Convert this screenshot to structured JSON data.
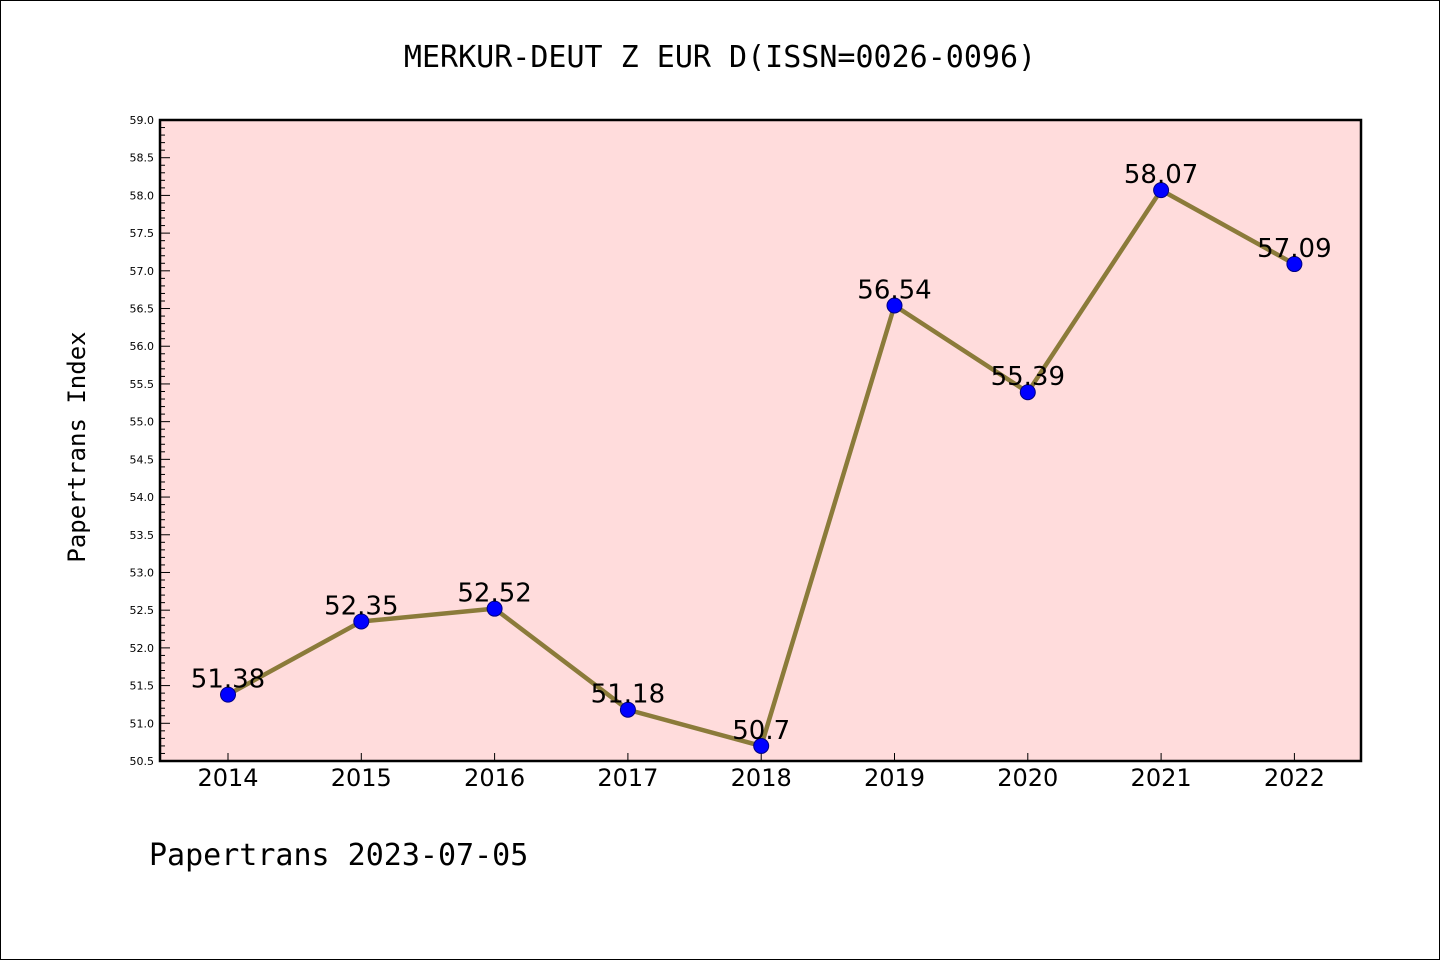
{
  "chart_data": {
    "type": "line",
    "title": "MERKUR-DEUT Z EUR D(ISSN=0026-0096)",
    "ylabel": "Papertrans Index",
    "xlabel": "",
    "footer": "Papertrans 2023-07-05",
    "categories": [
      "2014",
      "2015",
      "2016",
      "2017",
      "2018",
      "2019",
      "2020",
      "2021",
      "2022"
    ],
    "series": [
      {
        "values": [
          51.38,
          52.35,
          52.52,
          51.18,
          50.7,
          56.54,
          55.39,
          58.07,
          57.09
        ],
        "labels": [
          "51.38",
          "52.35",
          "52.52",
          "51.18",
          "50.7",
          "56.54",
          "55.39",
          "58.07",
          "57.09"
        ]
      }
    ],
    "ylim": [
      50.5,
      59.0
    ],
    "yticks": [
      "50.5",
      "51.0",
      "51.5",
      "52.0",
      "52.5",
      "53.0",
      "53.5",
      "54.0",
      "54.5",
      "55.0",
      "55.5",
      "56.0",
      "56.5",
      "57.0",
      "57.5",
      "58.0",
      "58.5",
      "59.0"
    ],
    "grid": false,
    "legend": "none",
    "colors": {
      "plot_background": "#ffdcdc",
      "line": "#8b7b3a",
      "marker": "#0000ff",
      "marker_edge": "#000080",
      "axis": "#000000"
    }
  }
}
